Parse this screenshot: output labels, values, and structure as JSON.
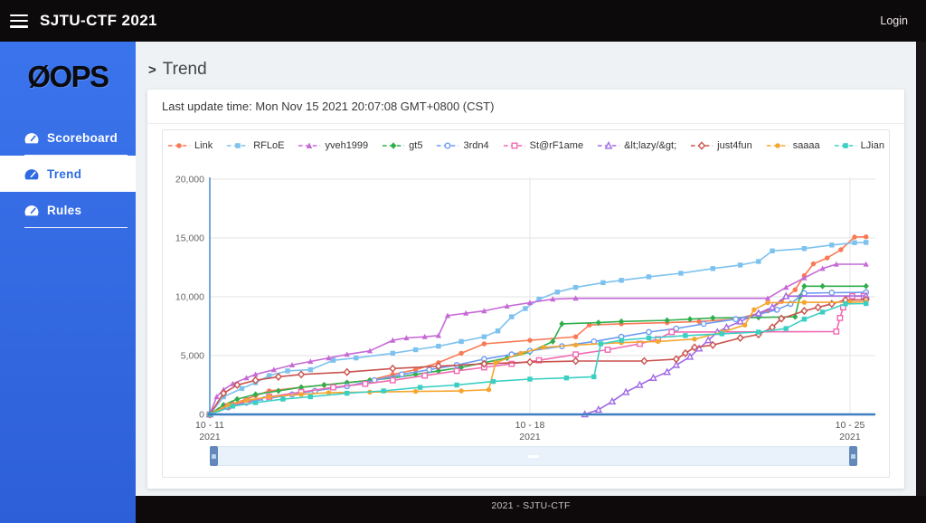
{
  "header": {
    "title": "SJTU-CTF 2021",
    "login_label": "Login",
    "menu_icon": "hamburger-icon"
  },
  "sidebar": {
    "logo_text": "ØOPS",
    "items": [
      {
        "id": "scoreboard",
        "label": "Scoreboard",
        "icon": "tachometer-icon",
        "active": false
      },
      {
        "id": "trend",
        "label": "Trend",
        "icon": "tachometer-icon",
        "active": true
      },
      {
        "id": "rules",
        "label": "Rules",
        "icon": "tachometer-icon",
        "active": false
      }
    ]
  },
  "main": {
    "breadcrumb_prefix": ">",
    "title": "Trend",
    "last_update": "Last update time: Mon Nov 15 2021 20:07:08 GMT+0800 (CST)"
  },
  "footer": {
    "text": "2021 - SJTU-CTF"
  },
  "colors": {
    "sidebar_blue": "#3267e3",
    "active_link_blue": "#2e6be2",
    "header_black": "#0d0a0b",
    "y_axis_blue": "#5591cc",
    "x_axis_blue": "#3d7fc0",
    "gridline_gray": "#e3e3e3",
    "slider_track": "#e9f1fb",
    "slider_handle": "#6389bb"
  },
  "chart_data": {
    "type": "line",
    "title": "",
    "xlabel": "",
    "ylabel": "",
    "ylim": [
      0,
      20000
    ],
    "grid": true,
    "legend_position": "top",
    "y_ticks": [
      0,
      5000,
      10000,
      15000,
      20000
    ],
    "y_tick_labels": [
      "0",
      "5,000",
      "10,000",
      "15,000",
      "20,000"
    ],
    "x_ticks": [
      {
        "label": "10 - 11",
        "sub": "2021",
        "day": 0
      },
      {
        "label": "10 - 18",
        "sub": "2021",
        "day": 7
      },
      {
        "label": "10 - 25",
        "sub": "2021",
        "day": 14
      }
    ],
    "x_range_days": [
      0,
      14.5
    ],
    "series": [
      {
        "id": "link",
        "name": "Link",
        "color": "#fa7955",
        "marker": "circle",
        "filled": true,
        "points": [
          [
            0,
            0
          ],
          [
            0.2,
            400
          ],
          [
            0.5,
            900
          ],
          [
            0.8,
            1300
          ],
          [
            1,
            1600
          ],
          [
            1.3,
            2000
          ],
          [
            2,
            2300
          ],
          [
            2.5,
            2500
          ],
          [
            3,
            2700
          ],
          [
            3.5,
            2900
          ],
          [
            4,
            3400
          ],
          [
            4.5,
            3800
          ],
          [
            5,
            4400
          ],
          [
            5.5,
            5200
          ],
          [
            6,
            6000
          ],
          [
            7,
            6300
          ],
          [
            8,
            6600
          ],
          [
            8.3,
            7600
          ],
          [
            9,
            7700
          ],
          [
            10,
            7800
          ],
          [
            10.7,
            7900
          ],
          [
            11.5,
            8100
          ],
          [
            12.2,
            8800
          ],
          [
            12.5,
            9600
          ],
          [
            12.8,
            10600
          ],
          [
            13,
            11800
          ],
          [
            13.2,
            12800
          ],
          [
            13.5,
            13300
          ],
          [
            13.8,
            14000
          ],
          [
            14.1,
            15080
          ],
          [
            14.35,
            15100
          ]
        ]
      },
      {
        "id": "rfloe",
        "name": "RFLoE",
        "color": "#7dc2ee",
        "marker": "square",
        "filled": true,
        "points": [
          [
            0,
            0
          ],
          [
            0.3,
            1500
          ],
          [
            0.7,
            2200
          ],
          [
            1,
            2700
          ],
          [
            1.3,
            3300
          ],
          [
            1.7,
            3700
          ],
          [
            2.2,
            3800
          ],
          [
            2.7,
            4600
          ],
          [
            3.2,
            4800
          ],
          [
            4,
            5200
          ],
          [
            4.5,
            5500
          ],
          [
            5,
            5800
          ],
          [
            5.5,
            6200
          ],
          [
            6,
            6600
          ],
          [
            6.3,
            7100
          ],
          [
            6.6,
            8300
          ],
          [
            6.9,
            9000
          ],
          [
            7.2,
            9800
          ],
          [
            7.6,
            10400
          ],
          [
            8,
            10800
          ],
          [
            8.6,
            11200
          ],
          [
            9,
            11400
          ],
          [
            9.6,
            11700
          ],
          [
            10.3,
            12000
          ],
          [
            11,
            12400
          ],
          [
            11.6,
            12700
          ],
          [
            12,
            13000
          ],
          [
            12.3,
            13900
          ],
          [
            13,
            14100
          ],
          [
            13.6,
            14400
          ],
          [
            14.1,
            14600
          ],
          [
            14.35,
            14620
          ]
        ]
      },
      {
        "id": "yveh1999",
        "name": "yveh1999",
        "color": "#c669d6",
        "marker": "triangle",
        "filled": true,
        "points": [
          [
            0,
            0
          ],
          [
            0.15,
            1500
          ],
          [
            0.3,
            2100
          ],
          [
            0.5,
            2600
          ],
          [
            0.8,
            3100
          ],
          [
            1,
            3400
          ],
          [
            1.4,
            3800
          ],
          [
            1.8,
            4200
          ],
          [
            2.2,
            4500
          ],
          [
            2.6,
            4800
          ],
          [
            3,
            5100
          ],
          [
            3.5,
            5400
          ],
          [
            4,
            6300
          ],
          [
            4.3,
            6500
          ],
          [
            4.7,
            6600
          ],
          [
            5,
            6700
          ],
          [
            5.2,
            8400
          ],
          [
            5.6,
            8600
          ],
          [
            6,
            8800
          ],
          [
            6.5,
            9200
          ],
          [
            7,
            9500
          ],
          [
            7.5,
            9800
          ],
          [
            8,
            9870
          ],
          [
            12.2,
            9870
          ],
          [
            12.6,
            10800
          ],
          [
            13,
            11600
          ],
          [
            13.4,
            12400
          ],
          [
            13.7,
            12770
          ],
          [
            14.35,
            12770
          ]
        ]
      },
      {
        "id": "gt5",
        "name": "gt5",
        "color": "#2fae4c",
        "marker": "diamond",
        "filled": true,
        "points": [
          [
            0,
            0
          ],
          [
            0.3,
            800
          ],
          [
            0.6,
            1300
          ],
          [
            1,
            1700
          ],
          [
            1.5,
            2000
          ],
          [
            2,
            2300
          ],
          [
            2.5,
            2500
          ],
          [
            3,
            2700
          ],
          [
            3.5,
            2900
          ],
          [
            4,
            3100
          ],
          [
            4.5,
            3400
          ],
          [
            5,
            3700
          ],
          [
            5.5,
            4000
          ],
          [
            6,
            4400
          ],
          [
            6.5,
            4800
          ],
          [
            7,
            5300
          ],
          [
            7.5,
            6200
          ],
          [
            7.7,
            7700
          ],
          [
            8.5,
            7800
          ],
          [
            9,
            7900
          ],
          [
            10,
            8000
          ],
          [
            10.5,
            8100
          ],
          [
            11,
            8200
          ],
          [
            12,
            8250
          ],
          [
            12.8,
            8300
          ],
          [
            12.9,
            10000
          ],
          [
            13,
            10900
          ],
          [
            13.4,
            10900
          ],
          [
            14.35,
            10900
          ]
        ]
      },
      {
        "id": "3rdn4",
        "name": "3rdn4",
        "color": "#6d9bf0",
        "marker": "circle",
        "filled": false,
        "points": [
          [
            0,
            0
          ],
          [
            0.4,
            600
          ],
          [
            0.8,
            1000
          ],
          [
            1.2,
            1300
          ],
          [
            1.8,
            1700
          ],
          [
            2.3,
            2000
          ],
          [
            3,
            2400
          ],
          [
            3.6,
            2900
          ],
          [
            4.2,
            3400
          ],
          [
            4.8,
            3800
          ],
          [
            5.4,
            4200
          ],
          [
            6,
            4700
          ],
          [
            6.6,
            5100
          ],
          [
            7,
            5400
          ],
          [
            7.7,
            5800
          ],
          [
            8.4,
            6200
          ],
          [
            9,
            6600
          ],
          [
            9.6,
            7000
          ],
          [
            10.2,
            7300
          ],
          [
            10.8,
            7700
          ],
          [
            11.5,
            8100
          ],
          [
            12,
            8500
          ],
          [
            12.4,
            8900
          ],
          [
            12.7,
            9400
          ],
          [
            13,
            10300
          ],
          [
            13.6,
            10350
          ],
          [
            14.35,
            10380
          ]
        ]
      },
      {
        "id": "starf1ame",
        "name": "St@rF1ame",
        "color": "#f06ab2",
        "marker": "square",
        "filled": false,
        "points": [
          [
            0,
            0
          ],
          [
            0.4,
            700
          ],
          [
            0.8,
            1100
          ],
          [
            1.3,
            1500
          ],
          [
            2,
            1900
          ],
          [
            2.7,
            2300
          ],
          [
            3.4,
            2600
          ],
          [
            4,
            2900
          ],
          [
            4.7,
            3300
          ],
          [
            5.4,
            3700
          ],
          [
            6,
            4000
          ],
          [
            6.6,
            4300
          ],
          [
            7.2,
            4600
          ],
          [
            8,
            5100
          ],
          [
            8.7,
            5500
          ],
          [
            9.4,
            6000
          ],
          [
            9.8,
            6400
          ],
          [
            10.1,
            7000
          ],
          [
            13.7,
            7050
          ],
          [
            13.78,
            8200
          ],
          [
            13.85,
            9100
          ],
          [
            13.95,
            9800
          ],
          [
            14.05,
            10050
          ],
          [
            14.3,
            10050
          ]
        ]
      },
      {
        "id": "lazy",
        "name": "&lt;lazy/&gt;",
        "color": "#a06ae4",
        "marker": "triangle",
        "filled": false,
        "points": [
          [
            0,
            0
          ],
          [
            8.2,
            0
          ],
          [
            8.5,
            400
          ],
          [
            8.8,
            1100
          ],
          [
            9.1,
            1900
          ],
          [
            9.4,
            2500
          ],
          [
            9.7,
            3100
          ],
          [
            10,
            3600
          ],
          [
            10.2,
            4200
          ],
          [
            10.5,
            4900
          ],
          [
            10.7,
            5600
          ],
          [
            10.9,
            6300
          ],
          [
            11.1,
            7000
          ],
          [
            11.3,
            7400
          ],
          [
            11.6,
            7900
          ],
          [
            12,
            8600
          ],
          [
            12.3,
            9100
          ],
          [
            12.6,
            10050
          ],
          [
            14.35,
            10080
          ]
        ]
      },
      {
        "id": "just4fun",
        "name": "just4fun",
        "color": "#c9534e",
        "marker": "diamond",
        "filled": false,
        "points": [
          [
            0,
            0
          ],
          [
            0.3,
            1800
          ],
          [
            0.6,
            2500
          ],
          [
            1,
            2900
          ],
          [
            1.5,
            3200
          ],
          [
            2,
            3400
          ],
          [
            3,
            3600
          ],
          [
            4,
            3900
          ],
          [
            5,
            4100
          ],
          [
            6,
            4300
          ],
          [
            7,
            4450
          ],
          [
            8,
            4540
          ],
          [
            9.5,
            4540
          ],
          [
            10.2,
            4700
          ],
          [
            10.4,
            5200
          ],
          [
            10.6,
            5700
          ],
          [
            11,
            5900
          ],
          [
            11.6,
            6500
          ],
          [
            12,
            6800
          ],
          [
            12.3,
            7400
          ],
          [
            12.5,
            8150
          ],
          [
            13,
            8800
          ],
          [
            13.3,
            9100
          ],
          [
            13.6,
            9400
          ],
          [
            13.9,
            9720
          ],
          [
            14.35,
            9750
          ]
        ]
      },
      {
        "id": "saaaa",
        "name": "saaaa",
        "color": "#f5a62f",
        "marker": "circle",
        "filled": true,
        "points": [
          [
            0,
            0
          ],
          [
            0.4,
            800
          ],
          [
            0.8,
            1200
          ],
          [
            1.3,
            1500
          ],
          [
            2,
            1700
          ],
          [
            2.6,
            1850
          ],
          [
            3.5,
            1900
          ],
          [
            4.5,
            1950
          ],
          [
            5.5,
            2000
          ],
          [
            6.1,
            2100
          ],
          [
            6.25,
            4400
          ],
          [
            6.8,
            5200
          ],
          [
            7.3,
            5700
          ],
          [
            8,
            5900
          ],
          [
            9,
            6100
          ],
          [
            9.8,
            6200
          ],
          [
            10.6,
            6400
          ],
          [
            11.2,
            7000
          ],
          [
            11.7,
            7600
          ],
          [
            11.9,
            8900
          ],
          [
            12.2,
            9500
          ],
          [
            13,
            9520
          ],
          [
            14,
            9550
          ],
          [
            14.35,
            9580
          ]
        ]
      },
      {
        "id": "ljian",
        "name": "LJian",
        "color": "#3bcfc4",
        "marker": "square",
        "filled": true,
        "points": [
          [
            0,
            0
          ],
          [
            0.5,
            700
          ],
          [
            1,
            1000
          ],
          [
            1.6,
            1300
          ],
          [
            2.2,
            1500
          ],
          [
            3,
            1800
          ],
          [
            3.8,
            2000
          ],
          [
            4.6,
            2300
          ],
          [
            5.4,
            2500
          ],
          [
            6.2,
            2800
          ],
          [
            7,
            3000
          ],
          [
            7.8,
            3100
          ],
          [
            8.4,
            3200
          ],
          [
            8.55,
            6000
          ],
          [
            9,
            6300
          ],
          [
            9.6,
            6500
          ],
          [
            10.4,
            6700
          ],
          [
            11.2,
            6850
          ],
          [
            12,
            7000
          ],
          [
            12.6,
            7300
          ],
          [
            13,
            8100
          ],
          [
            13.4,
            8700
          ],
          [
            13.9,
            9400
          ],
          [
            14.35,
            9420
          ]
        ]
      }
    ]
  }
}
